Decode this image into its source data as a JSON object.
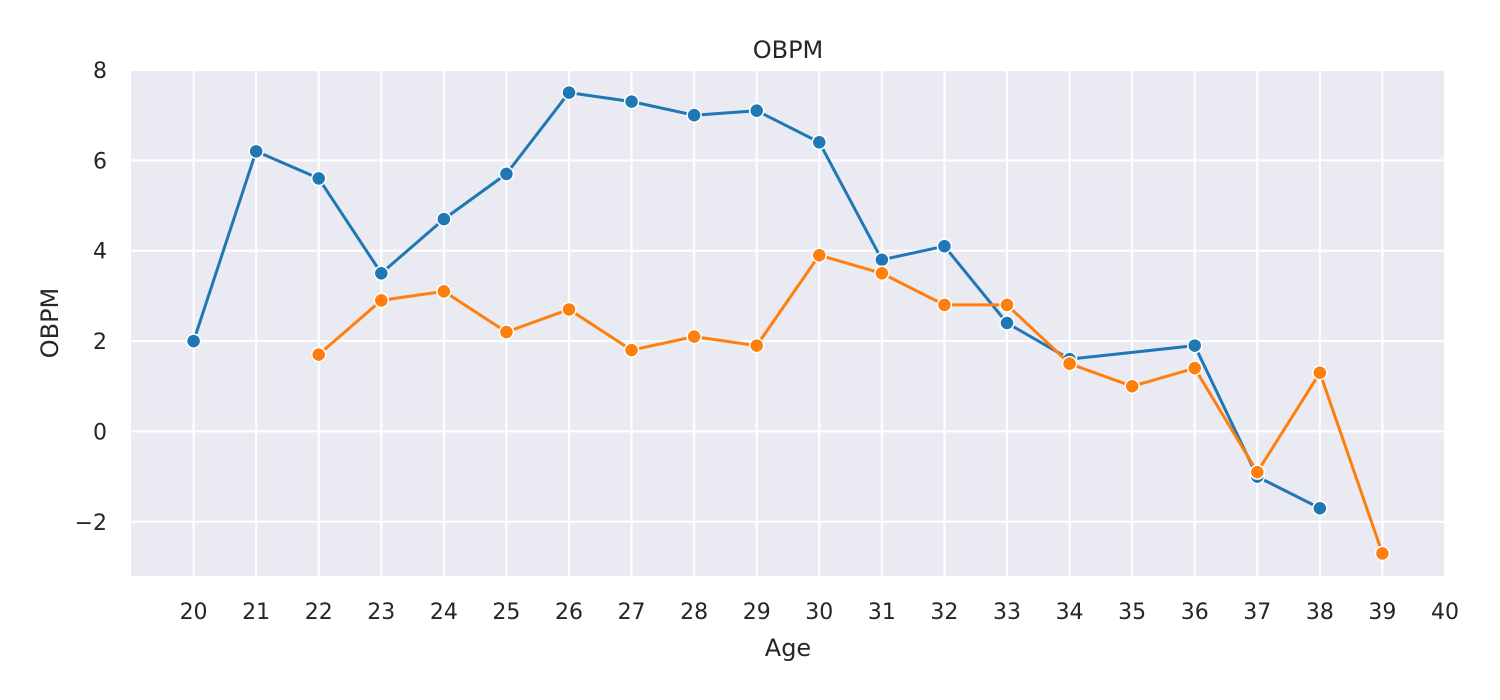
{
  "chart_data": {
    "type": "line",
    "title": "OBPM",
    "xlabel": "Age",
    "ylabel": "OBPM",
    "xlim": [
      19,
      40
    ],
    "ylim": [
      -3.2,
      8
    ],
    "xticks": [
      20,
      21,
      22,
      23,
      24,
      25,
      26,
      27,
      28,
      29,
      30,
      31,
      32,
      33,
      34,
      35,
      36,
      37,
      38,
      39,
      40
    ],
    "yticks": [
      -2,
      0,
      2,
      4,
      6,
      8
    ],
    "ytick_labels": [
      "−2",
      "0",
      "2",
      "4",
      "6",
      "8"
    ],
    "grid": true,
    "background": "#eaeaf2",
    "series": [
      {
        "color": "#1f77b4",
        "points": [
          [
            20,
            2.0
          ],
          [
            21,
            6.2
          ],
          [
            22,
            5.6
          ],
          [
            23,
            3.5
          ],
          [
            24,
            4.7
          ],
          [
            25,
            5.7
          ],
          [
            26,
            7.5
          ],
          [
            27,
            7.3
          ],
          [
            28,
            7.0
          ],
          [
            29,
            7.1
          ],
          [
            30,
            6.4
          ],
          [
            31,
            3.8
          ],
          [
            32,
            4.1
          ],
          [
            33,
            2.4
          ],
          [
            34,
            1.6
          ],
          [
            36,
            1.9
          ],
          [
            37,
            -1.0
          ],
          [
            38,
            -1.7
          ]
        ]
      },
      {
        "color": "#ff7f0e",
        "points": [
          [
            22,
            1.7
          ],
          [
            23,
            2.9
          ],
          [
            24,
            3.1
          ],
          [
            25,
            2.2
          ],
          [
            26,
            2.7
          ],
          [
            27,
            1.8
          ],
          [
            28,
            2.1
          ],
          [
            29,
            1.9
          ],
          [
            30,
            3.9
          ],
          [
            31,
            3.5
          ],
          [
            32,
            2.8
          ],
          [
            33,
            2.8
          ],
          [
            34,
            1.5
          ],
          [
            35,
            1.0
          ],
          [
            36,
            1.4
          ],
          [
            37,
            -0.9
          ],
          [
            38,
            1.3
          ],
          [
            39,
            -2.7
          ]
        ]
      }
    ]
  }
}
